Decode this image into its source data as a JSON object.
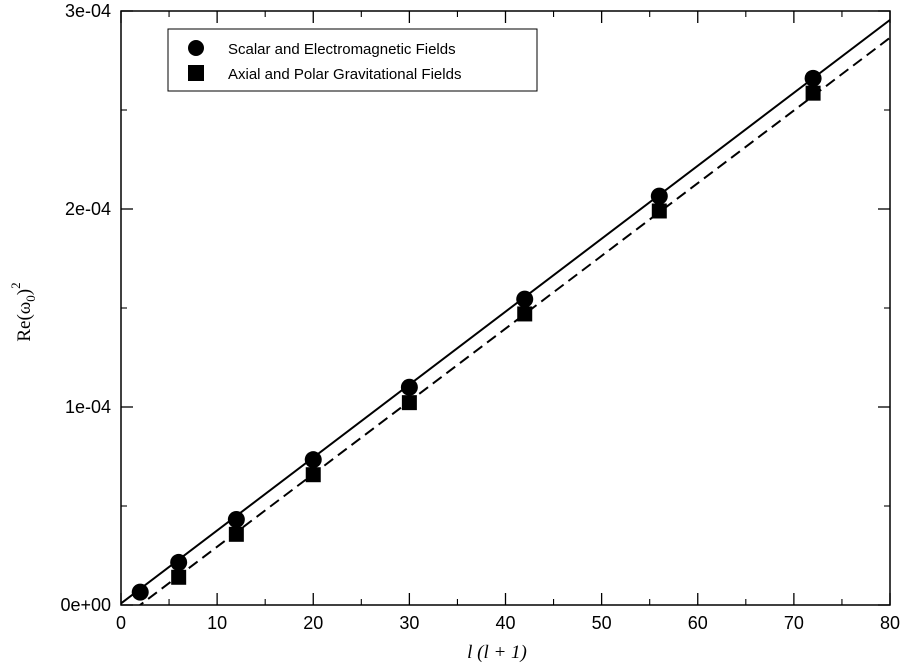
{
  "chart_data": {
    "type": "scatter",
    "xlabel": "l (l + 1)",
    "ylabel": "Re(ω0)2",
    "xlim": [
      0,
      80
    ],
    "ylim": [
      0,
      0.0003
    ],
    "x_ticks": [
      0,
      10,
      20,
      30,
      40,
      50,
      60,
      70,
      80
    ],
    "x_tick_labels": [
      "0",
      "10",
      "20",
      "30",
      "40",
      "50",
      "60",
      "70",
      "80"
    ],
    "y_ticks": [
      0,
      0.0001,
      0.0002,
      0.0003
    ],
    "y_tick_labels": [
      "0e+00",
      "1e-04",
      "2e-04",
      "3e-04"
    ],
    "grid": false,
    "legend_position": "top-left",
    "series": [
      {
        "name": "Scalar and Electromagnetic Fields",
        "marker": "circle",
        "color": "#000000",
        "x": [
          2,
          6,
          12,
          20,
          30,
          42,
          56,
          72
        ],
        "y": [
          6.5e-06,
          2.15e-05,
          4.32e-05,
          7.34e-05,
          0.00011,
          0.0001545,
          0.0002065,
          0.000266
        ]
      },
      {
        "name": "Axial and Polar Gravitational Fields",
        "marker": "square",
        "color": "#000000",
        "x": [
          6,
          12,
          20,
          30,
          42,
          56,
          72
        ],
        "y": [
          1.4e-05,
          3.57e-05,
          6.58e-05,
          0.0001022,
          0.000147,
          0.000199,
          0.0002585
        ]
      }
    ],
    "fit_lines": [
      {
        "style": "solid",
        "x": [
          0,
          80
        ],
        "y": [
          8e-07,
          0.0002955
        ]
      },
      {
        "style": "dashed",
        "x": [
          0,
          80
        ],
        "y": [
          -7.3e-06,
          0.0002865
        ]
      }
    ]
  }
}
